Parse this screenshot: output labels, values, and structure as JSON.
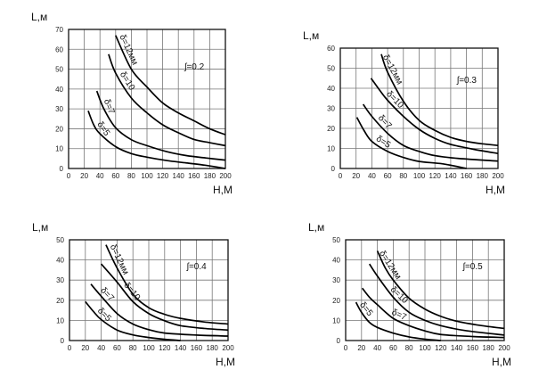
{
  "chart_data": [
    {
      "type": "line",
      "annotation": "ʃ=0.2",
      "xlabel": "H,M",
      "ylabel": "L,м",
      "xlim": [
        0,
        200
      ],
      "ylim": [
        0,
        70
      ],
      "xticks": [
        "0",
        "20",
        "40",
        "60",
        "80",
        "100",
        "120",
        "140",
        "160",
        "180",
        "200"
      ],
      "yticks": [
        "0",
        "10",
        "20",
        "30",
        "40",
        "50",
        "60",
        "70"
      ],
      "grid": true,
      "series": [
        {
          "name": "δ=12мм",
          "x": [
            60,
            80,
            100,
            120,
            140,
            160,
            180,
            200
          ],
          "y": [
            67,
            50,
            41,
            33,
            28,
            24,
            20,
            17
          ]
        },
        {
          "name": "δ=10",
          "x": [
            51,
            60,
            80,
            100,
            120,
            140,
            160,
            180,
            200
          ],
          "y": [
            57.5,
            48,
            35.5,
            28,
            22,
            18,
            14.6,
            13,
            11.5
          ]
        },
        {
          "name": "δ=7",
          "x": [
            36,
            45,
            60,
            80,
            100,
            125,
            150,
            175,
            200
          ],
          "y": [
            39,
            30,
            20.5,
            14.5,
            11.5,
            8.5,
            6.5,
            5.3,
            4.2
          ]
        },
        {
          "name": "δ=5",
          "x": [
            25,
            32,
            40,
            60,
            80,
            100,
            125,
            150,
            175,
            200
          ],
          "y": [
            29,
            22,
            17.5,
            11,
            7.5,
            5.7,
            4,
            2.8,
            1.6,
            0
          ]
        }
      ]
    },
    {
      "type": "line",
      "annotation": "ʃ=0.3",
      "xlabel": "H,M",
      "ylabel": "L,м",
      "xlim": [
        0,
        200
      ],
      "ylim": [
        0,
        60
      ],
      "xticks": [
        "0",
        "20",
        "40",
        "60",
        "80",
        "100",
        "120",
        "140",
        "160",
        "180",
        "200"
      ],
      "yticks": [
        "0",
        "10",
        "20",
        "30",
        "40",
        "50",
        "60"
      ],
      "grid": true,
      "series": [
        {
          "name": "δ=12мм",
          "x": [
            52,
            60,
            80,
            100,
            120,
            140,
            160,
            180,
            200
          ],
          "y": [
            57,
            48,
            33.5,
            24,
            19,
            15.5,
            13.5,
            12.3,
            11.5
          ]
        },
        {
          "name": "δ=10",
          "x": [
            39,
            50,
            60,
            80,
            100,
            120,
            140,
            170,
            200
          ],
          "y": [
            45,
            39,
            34,
            26,
            19.5,
            15,
            12,
            9.5,
            7.5
          ]
        },
        {
          "name": "δ=7",
          "x": [
            29,
            40,
            60,
            80,
            100,
            120,
            150,
            200
          ],
          "y": [
            32,
            26,
            17.5,
            11.5,
            8.5,
            6.4,
            5,
            3.7
          ]
        },
        {
          "name": "δ=5",
          "x": [
            21,
            30,
            40,
            60,
            80,
            100,
            130,
            160
          ],
          "y": [
            25.5,
            19,
            13.5,
            8.5,
            5.5,
            3.5,
            2.3,
            0
          ]
        }
      ]
    },
    {
      "type": "line",
      "annotation": "ʃ=0.4",
      "xlabel": "H,M",
      "ylabel": "L,м",
      "xlim": [
        0,
        200
      ],
      "ylim": [
        0,
        50
      ],
      "xticks": [
        "0",
        "20",
        "40",
        "60",
        "80",
        "100",
        "120",
        "140",
        "160",
        "180",
        "200"
      ],
      "yticks": [
        "0",
        "10",
        "20",
        "30",
        "40",
        "50"
      ],
      "grid": true,
      "series": [
        {
          "name": "δ=12мм",
          "x": [
            46,
            60,
            80,
            100,
            120,
            140,
            170,
            200
          ],
          "y": [
            47.5,
            36,
            23,
            16.3,
            13,
            11,
            9.2,
            8.2
          ]
        },
        {
          "name": "δ=10",
          "x": [
            40,
            60,
            80,
            100,
            120,
            140,
            170,
            200
          ],
          "y": [
            38,
            29,
            19.3,
            13.4,
            9.8,
            7.4,
            6,
            5.2
          ]
        },
        {
          "name": "δ=7",
          "x": [
            27,
            40,
            60,
            80,
            100,
            120,
            160,
            200
          ],
          "y": [
            28,
            22,
            13.4,
            8.2,
            5.4,
            3.7,
            2.7,
            2.2
          ]
        },
        {
          "name": "δ=5",
          "x": [
            20,
            30,
            40,
            60,
            80,
            100,
            120,
            140
          ],
          "y": [
            19.3,
            14.5,
            10.4,
            5.2,
            2.8,
            1.5,
            0.6,
            0
          ]
        }
      ]
    },
    {
      "type": "line",
      "annotation": "ʃ=0.5",
      "xlabel": "H,M",
      "ylabel": "L,м",
      "xlim": [
        0,
        200
      ],
      "ylim": [
        0,
        50
      ],
      "xticks": [
        "0",
        "20",
        "40",
        "60",
        "80",
        "100",
        "120",
        "140",
        "160",
        "180",
        "200"
      ],
      "yticks": [
        "0",
        "10",
        "20",
        "30",
        "40",
        "50"
      ],
      "grid": true,
      "series": [
        {
          "name": "δ=12мм",
          "x": [
            40,
            50,
            60,
            80,
            100,
            120,
            140,
            170,
            200
          ],
          "y": [
            44.5,
            36,
            30,
            21,
            15.6,
            12,
            9.6,
            7.5,
            6
          ]
        },
        {
          "name": "δ=10",
          "x": [
            30,
            40,
            60,
            80,
            100,
            120,
            150,
            200
          ],
          "y": [
            38,
            32,
            21.5,
            14,
            10,
            7.4,
            5,
            2.7
          ]
        },
        {
          "name": "δ=7",
          "x": [
            21,
            30,
            40,
            60,
            80,
            100,
            120,
            160,
            200
          ],
          "y": [
            26,
            21.5,
            17.8,
            11,
            7.4,
            4.8,
            3,
            2,
            1.5
          ]
        },
        {
          "name": "δ=5",
          "x": [
            13,
            20,
            30,
            40,
            60,
            80,
            100,
            120
          ],
          "y": [
            19,
            14,
            9,
            6.5,
            3.7,
            1.8,
            0.7,
            0
          ]
        }
      ]
    }
  ]
}
